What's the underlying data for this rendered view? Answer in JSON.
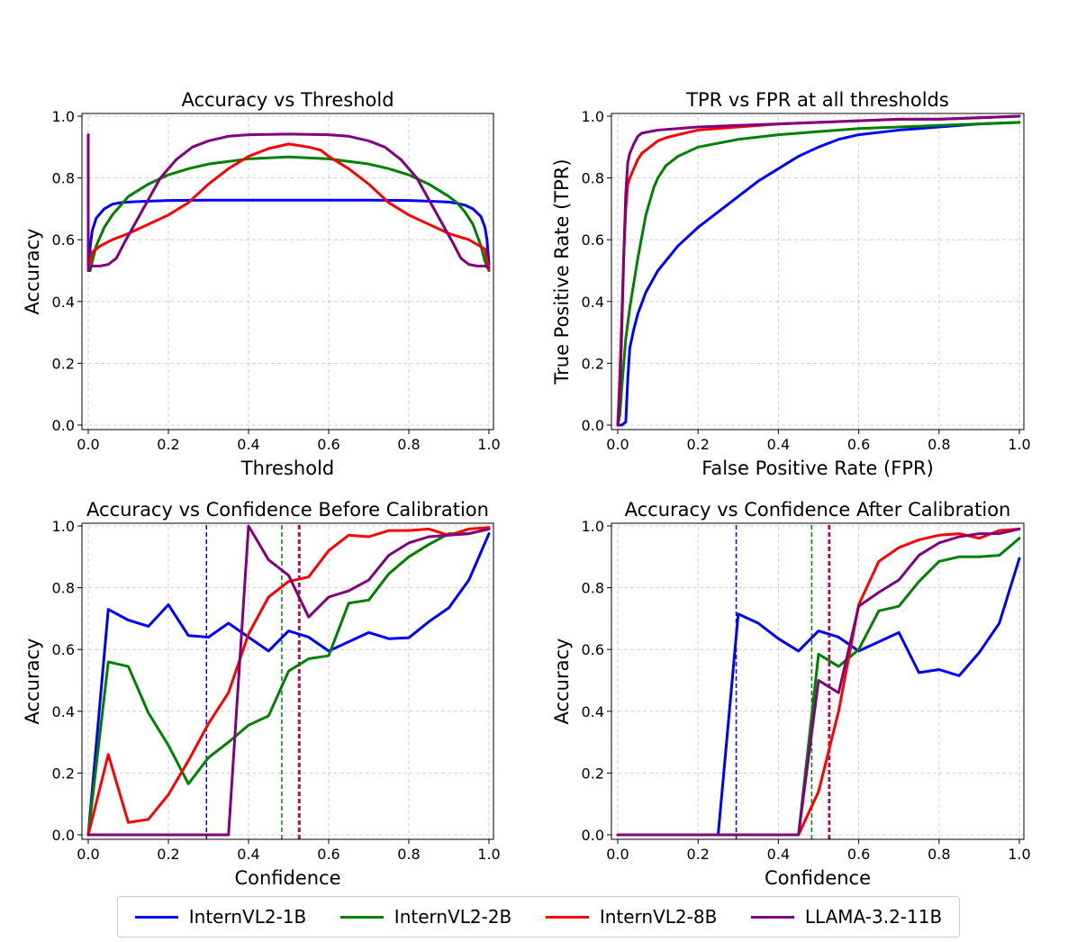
{
  "legend": [
    {
      "name": "InternVL2-1B",
      "color": "#0000ff"
    },
    {
      "name": "InternVL2-2B",
      "color": "#008000"
    },
    {
      "name": "InternVL2-8B",
      "color": "#ff0000"
    },
    {
      "name": "LLAMA-3.2-11B",
      "color": "#800080"
    }
  ],
  "chart_data": [
    {
      "type": "line",
      "title": "Accuracy vs Threshold",
      "xlabel": "Threshold",
      "ylabel": "Accuracy",
      "xlim": [
        0,
        1
      ],
      "ylim": [
        0,
        1
      ],
      "xticks": [
        "0.0",
        "0.2",
        "0.4",
        "0.6",
        "0.8",
        "1.0"
      ],
      "yticks": [
        "0.0",
        "0.2",
        "0.4",
        "0.6",
        "0.8",
        "1.0"
      ],
      "grid": true,
      "series": [
        {
          "name": "InternVL2-1B",
          "color": "#0000ff",
          "x": [
            0.0,
            0.005,
            0.01,
            0.02,
            0.04,
            0.06,
            0.08,
            0.1,
            0.15,
            0.2,
            0.3,
            0.5,
            0.7,
            0.8,
            0.85,
            0.9,
            0.92,
            0.94,
            0.96,
            0.98,
            0.99,
            0.995,
            1.0
          ],
          "y": [
            0.5,
            0.58,
            0.63,
            0.67,
            0.7,
            0.715,
            0.72,
            0.722,
            0.725,
            0.727,
            0.728,
            0.728,
            0.728,
            0.727,
            0.725,
            0.722,
            0.718,
            0.712,
            0.7,
            0.675,
            0.64,
            0.6,
            0.52
          ]
        },
        {
          "name": "InternVL2-2B",
          "color": "#008000",
          "x": [
            0.0,
            0.005,
            0.01,
            0.02,
            0.04,
            0.06,
            0.08,
            0.1,
            0.15,
            0.2,
            0.25,
            0.3,
            0.4,
            0.5,
            0.6,
            0.7,
            0.75,
            0.8,
            0.85,
            0.9,
            0.92,
            0.94,
            0.96,
            0.98,
            0.99,
            1.0
          ],
          "y": [
            0.5,
            0.5,
            0.53,
            0.58,
            0.64,
            0.68,
            0.71,
            0.74,
            0.78,
            0.81,
            0.83,
            0.845,
            0.862,
            0.868,
            0.862,
            0.845,
            0.83,
            0.81,
            0.78,
            0.74,
            0.72,
            0.69,
            0.65,
            0.58,
            0.53,
            0.5
          ]
        },
        {
          "name": "InternVL2-8B",
          "color": "#ff0000",
          "x": [
            0.0,
            0.01,
            0.03,
            0.06,
            0.1,
            0.15,
            0.2,
            0.25,
            0.3,
            0.35,
            0.4,
            0.45,
            0.5,
            0.55,
            0.58,
            0.6,
            0.65,
            0.7,
            0.75,
            0.8,
            0.85,
            0.9,
            0.95,
            0.99,
            1.0
          ],
          "y": [
            0.5,
            0.56,
            0.58,
            0.6,
            0.62,
            0.65,
            0.68,
            0.72,
            0.78,
            0.83,
            0.87,
            0.895,
            0.91,
            0.9,
            0.89,
            0.87,
            0.83,
            0.78,
            0.72,
            0.68,
            0.65,
            0.62,
            0.6,
            0.57,
            0.5
          ]
        },
        {
          "name": "LLAMA-3.2-11B",
          "color": "#800080",
          "x": [
            0.0,
            0.0,
            0.001,
            0.003,
            0.01,
            0.03,
            0.05,
            0.07,
            0.09,
            0.12,
            0.15,
            0.18,
            0.22,
            0.26,
            0.3,
            0.35,
            0.4,
            0.5,
            0.6,
            0.65,
            0.7,
            0.74,
            0.78,
            0.82,
            0.85,
            0.88,
            0.91,
            0.93,
            0.95,
            0.97,
            0.99,
            1.0
          ],
          "y": [
            0.94,
            0.52,
            0.5,
            0.51,
            0.515,
            0.515,
            0.52,
            0.54,
            0.59,
            0.66,
            0.73,
            0.8,
            0.86,
            0.9,
            0.92,
            0.935,
            0.94,
            0.942,
            0.94,
            0.935,
            0.92,
            0.9,
            0.86,
            0.8,
            0.73,
            0.66,
            0.59,
            0.54,
            0.52,
            0.515,
            0.515,
            0.51
          ]
        }
      ]
    },
    {
      "type": "line",
      "title": "TPR vs FPR at all thresholds",
      "xlabel": "False Positive Rate (FPR)",
      "ylabel": "True Positive Rate (TPR)",
      "xlim": [
        0,
        1
      ],
      "ylim": [
        0,
        1
      ],
      "xticks": [
        "0.0",
        "0.2",
        "0.4",
        "0.6",
        "0.8",
        "1.0"
      ],
      "yticks": [
        "0.0",
        "0.2",
        "0.4",
        "0.6",
        "0.8",
        "1.0"
      ],
      "grid": true,
      "series": [
        {
          "name": "InternVL2-1B",
          "color": "#0000ff",
          "x": [
            0.0,
            0.01,
            0.02,
            0.025,
            0.03,
            0.04,
            0.05,
            0.07,
            0.1,
            0.15,
            0.2,
            0.25,
            0.3,
            0.35,
            0.4,
            0.45,
            0.5,
            0.55,
            0.6,
            0.7,
            0.8,
            0.9,
            1.0
          ],
          "y": [
            0.0,
            0.0,
            0.01,
            0.15,
            0.25,
            0.31,
            0.36,
            0.43,
            0.5,
            0.58,
            0.64,
            0.69,
            0.74,
            0.79,
            0.83,
            0.87,
            0.9,
            0.925,
            0.94,
            0.955,
            0.965,
            0.975,
            0.98
          ]
        },
        {
          "name": "InternVL2-2B",
          "color": "#008000",
          "x": [
            0.0,
            0.005,
            0.01,
            0.02,
            0.03,
            0.04,
            0.05,
            0.07,
            0.09,
            0.1,
            0.12,
            0.15,
            0.2,
            0.3,
            0.4,
            0.5,
            0.6,
            0.7,
            0.8,
            0.9,
            1.0
          ],
          "y": [
            0.0,
            0.03,
            0.12,
            0.28,
            0.38,
            0.46,
            0.54,
            0.68,
            0.77,
            0.8,
            0.84,
            0.87,
            0.9,
            0.925,
            0.94,
            0.95,
            0.96,
            0.965,
            0.97,
            0.975,
            0.98
          ]
        },
        {
          "name": "InternVL2-8B",
          "color": "#ff0000",
          "x": [
            0.0,
            0.005,
            0.01,
            0.015,
            0.02,
            0.025,
            0.03,
            0.04,
            0.05,
            0.06,
            0.08,
            0.1,
            0.12,
            0.15,
            0.2,
            0.3,
            0.4,
            0.5,
            0.6,
            0.7,
            0.8,
            0.9,
            1.0
          ],
          "y": [
            0.0,
            0.15,
            0.35,
            0.55,
            0.7,
            0.78,
            0.8,
            0.83,
            0.86,
            0.88,
            0.9,
            0.92,
            0.93,
            0.94,
            0.955,
            0.965,
            0.975,
            0.98,
            0.985,
            0.99,
            0.99,
            0.995,
            1.0
          ]
        },
        {
          "name": "LLAMA-3.2-11B",
          "color": "#800080",
          "x": [
            0.0,
            0.005,
            0.01,
            0.015,
            0.02,
            0.025,
            0.03,
            0.04,
            0.05,
            0.06,
            0.08,
            0.1,
            0.15,
            0.2,
            0.3,
            0.4,
            0.5,
            0.6,
            0.7,
            0.8,
            0.9,
            1.0
          ],
          "y": [
            0.0,
            0.1,
            0.3,
            0.55,
            0.75,
            0.85,
            0.88,
            0.91,
            0.935,
            0.945,
            0.95,
            0.955,
            0.96,
            0.965,
            0.97,
            0.975,
            0.98,
            0.985,
            0.99,
            0.99,
            0.995,
            1.0
          ]
        }
      ]
    },
    {
      "type": "line",
      "title": "Accuracy vs Confidence Before Calibration",
      "xlabel": "Confidence",
      "ylabel": "Accuracy",
      "xlim": [
        0,
        1
      ],
      "ylim": [
        0,
        1
      ],
      "xticks": [
        "0.0",
        "0.2",
        "0.4",
        "0.6",
        "0.8",
        "1.0"
      ],
      "yticks": [
        "0.0",
        "0.2",
        "0.4",
        "0.6",
        "0.8",
        "1.0"
      ],
      "grid": true,
      "vlines": [
        {
          "x": 0.295,
          "color": "#0000ff",
          "style": "dashed"
        },
        {
          "x": 0.483,
          "color": "#008000",
          "style": "dashed"
        },
        {
          "x": 0.525,
          "color": "#ff0000",
          "style": "dashed"
        },
        {
          "x": 0.528,
          "color": "#800080",
          "style": "dashed"
        }
      ],
      "series": [
        {
          "name": "InternVL2-1B",
          "color": "#0000ff",
          "x": [
            0.0,
            0.05,
            0.1,
            0.15,
            0.2,
            0.25,
            0.3,
            0.35,
            0.4,
            0.45,
            0.5,
            0.55,
            0.6,
            0.65,
            0.7,
            0.75,
            0.8,
            0.85,
            0.9,
            0.95,
            1.0
          ],
          "y": [
            0.0,
            0.73,
            0.695,
            0.675,
            0.745,
            0.645,
            0.64,
            0.685,
            0.64,
            0.595,
            0.66,
            0.64,
            0.595,
            0.625,
            0.655,
            0.635,
            0.638,
            0.69,
            0.735,
            0.825,
            0.975
          ]
        },
        {
          "name": "InternVL2-2B",
          "color": "#008000",
          "x": [
            0.0,
            0.05,
            0.1,
            0.15,
            0.2,
            0.25,
            0.3,
            0.35,
            0.4,
            0.45,
            0.5,
            0.55,
            0.6,
            0.65,
            0.7,
            0.75,
            0.8,
            0.85,
            0.9,
            0.95,
            1.0
          ],
          "y": [
            0.0,
            0.56,
            0.545,
            0.395,
            0.29,
            0.165,
            0.25,
            0.3,
            0.355,
            0.385,
            0.53,
            0.57,
            0.58,
            0.75,
            0.76,
            0.845,
            0.9,
            0.94,
            0.975,
            0.975,
            0.99
          ]
        },
        {
          "name": "InternVL2-8B",
          "color": "#ff0000",
          "x": [
            0.0,
            0.05,
            0.1,
            0.15,
            0.2,
            0.25,
            0.3,
            0.35,
            0.4,
            0.45,
            0.5,
            0.55,
            0.6,
            0.65,
            0.7,
            0.75,
            0.8,
            0.85,
            0.9,
            0.95,
            1.0
          ],
          "y": [
            0.0,
            0.26,
            0.04,
            0.05,
            0.13,
            0.24,
            0.36,
            0.46,
            0.65,
            0.77,
            0.82,
            0.835,
            0.92,
            0.97,
            0.965,
            0.985,
            0.985,
            0.99,
            0.97,
            0.99,
            0.995
          ]
        },
        {
          "name": "LLAMA-3.2-11B",
          "color": "#800080",
          "x": [
            0.0,
            0.05,
            0.1,
            0.15,
            0.2,
            0.25,
            0.3,
            0.35,
            0.4,
            0.45,
            0.5,
            0.55,
            0.6,
            0.65,
            0.7,
            0.75,
            0.8,
            0.85,
            0.9,
            0.95,
            1.0
          ],
          "y": [
            0.0,
            0.0,
            0.0,
            0.0,
            0.0,
            0.0,
            0.0,
            0.0,
            1.0,
            0.89,
            0.84,
            0.705,
            0.77,
            0.79,
            0.825,
            0.905,
            0.945,
            0.965,
            0.97,
            0.975,
            0.99
          ]
        }
      ]
    },
    {
      "type": "line",
      "title": "Accuracy vs Confidence After Calibration",
      "xlabel": "Confidence",
      "ylabel": "Accuracy",
      "xlim": [
        0,
        1
      ],
      "ylim": [
        0,
        1
      ],
      "xticks": [
        "0.0",
        "0.2",
        "0.4",
        "0.6",
        "0.8",
        "1.0"
      ],
      "yticks": [
        "0.0",
        "0.2",
        "0.4",
        "0.6",
        "0.8",
        "1.0"
      ],
      "grid": true,
      "vlines": [
        {
          "x": 0.295,
          "color": "#0000ff",
          "style": "dashed"
        },
        {
          "x": 0.483,
          "color": "#008000",
          "style": "dashed"
        },
        {
          "x": 0.525,
          "color": "#ff0000",
          "style": "dashed"
        },
        {
          "x": 0.528,
          "color": "#800080",
          "style": "dashed"
        }
      ],
      "series": [
        {
          "name": "InternVL2-1B",
          "color": "#0000ff",
          "x": [
            0.0,
            0.05,
            0.1,
            0.15,
            0.2,
            0.25,
            0.3,
            0.35,
            0.4,
            0.45,
            0.5,
            0.55,
            0.6,
            0.65,
            0.7,
            0.75,
            0.8,
            0.85,
            0.9,
            0.95,
            1.0
          ],
          "y": [
            0.0,
            0.0,
            0.0,
            0.0,
            0.0,
            0.0,
            0.715,
            0.685,
            0.635,
            0.595,
            0.66,
            0.64,
            0.595,
            0.625,
            0.655,
            0.525,
            0.535,
            0.515,
            0.59,
            0.685,
            0.895
          ]
        },
        {
          "name": "InternVL2-2B",
          "color": "#008000",
          "x": [
            0.0,
            0.05,
            0.1,
            0.15,
            0.2,
            0.25,
            0.3,
            0.35,
            0.4,
            0.45,
            0.5,
            0.55,
            0.6,
            0.65,
            0.7,
            0.75,
            0.8,
            0.85,
            0.9,
            0.95,
            1.0
          ],
          "y": [
            0.0,
            0.0,
            0.0,
            0.0,
            0.0,
            0.0,
            0.0,
            0.0,
            0.0,
            0.0,
            0.585,
            0.545,
            0.6,
            0.725,
            0.74,
            0.82,
            0.885,
            0.9,
            0.9,
            0.905,
            0.96
          ]
        },
        {
          "name": "InternVL2-8B",
          "color": "#ff0000",
          "x": [
            0.0,
            0.05,
            0.1,
            0.15,
            0.2,
            0.25,
            0.3,
            0.35,
            0.4,
            0.45,
            0.5,
            0.55,
            0.6,
            0.65,
            0.7,
            0.75,
            0.8,
            0.85,
            0.9,
            0.95,
            1.0
          ],
          "y": [
            0.0,
            0.0,
            0.0,
            0.0,
            0.0,
            0.0,
            0.0,
            0.0,
            0.0,
            0.0,
            0.14,
            0.4,
            0.745,
            0.885,
            0.93,
            0.955,
            0.97,
            0.975,
            0.96,
            0.985,
            0.99
          ]
        },
        {
          "name": "LLAMA-3.2-11B",
          "color": "#800080",
          "x": [
            0.0,
            0.05,
            0.1,
            0.15,
            0.2,
            0.25,
            0.3,
            0.35,
            0.4,
            0.45,
            0.5,
            0.55,
            0.6,
            0.65,
            0.7,
            0.75,
            0.8,
            0.85,
            0.9,
            0.95,
            1.0
          ],
          "y": [
            0.0,
            0.0,
            0.0,
            0.0,
            0.0,
            0.0,
            0.0,
            0.0,
            0.0,
            0.0,
            0.5,
            0.46,
            0.74,
            0.785,
            0.825,
            0.905,
            0.945,
            0.965,
            0.975,
            0.975,
            0.99
          ]
        }
      ]
    }
  ]
}
